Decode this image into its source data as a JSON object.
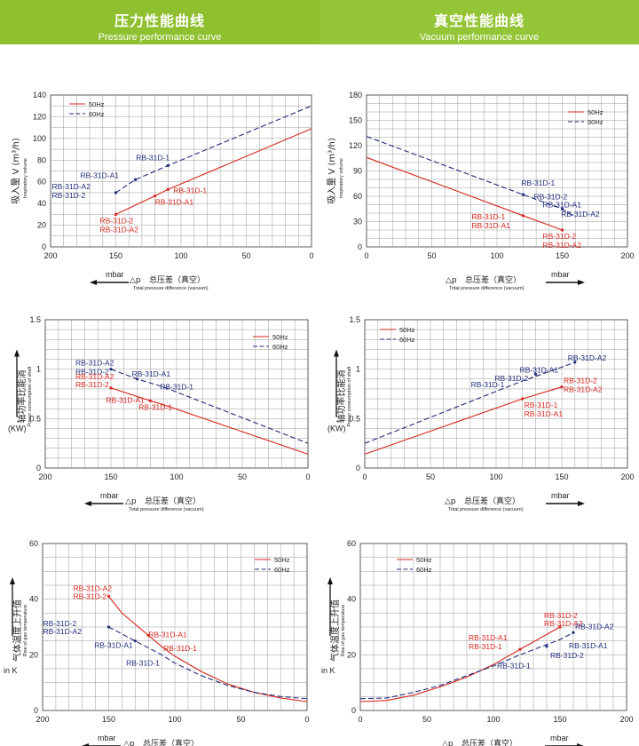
{
  "header": {
    "left_zh": "压力性能曲线",
    "left_en": "Pressure performance curve",
    "right_zh": "真空性能曲线",
    "right_en": "Vacuum performance curve"
  },
  "axis_text": {
    "dp_symbol": "△p",
    "x_zh": "总压差（真空）",
    "x_en": "Total pressure difference (vacuum)",
    "mbar": "mbar",
    "flow_zh": "吸入量",
    "flow_unit": "V (m³/h)",
    "flow_en": "Inspiratory volume",
    "power_zh": "轴功率比能消",
    "power_en": "Power consumption of shaft",
    "power_unit": "(KW)",
    "temp_zh": "气体温度上升值",
    "temp_en": "Rise of gas temperature",
    "temp_unit": "in K"
  },
  "colors": {
    "hz50": "#d7261d",
    "hz60": "#1f2a7a",
    "grid": "#9a9a9a",
    "banner": "#9dcb3c"
  },
  "chart_data": [
    {
      "id": "pressure-flow",
      "type": "line",
      "xlim": [
        200,
        0
      ],
      "ylim": [
        0,
        140
      ],
      "xticks": [
        "200",
        "150",
        "100",
        "50",
        "0"
      ],
      "yticks": [
        "0",
        "20",
        "40",
        "60",
        "80",
        "100",
        "120",
        "140"
      ],
      "legend_position": "top-left",
      "series": [
        {
          "name": "50Hz",
          "style": "solid",
          "x": [
            150,
            120,
            110,
            0
          ],
          "y": [
            30,
            47,
            53,
            109
          ]
        },
        {
          "name": "60Hz",
          "style": "dashed",
          "x": [
            150,
            135,
            110,
            0
          ],
          "y": [
            50,
            62,
            75,
            130
          ]
        }
      ],
      "annotations": [
        {
          "text": "RB-31D-1",
          "series": "60Hz"
        },
        {
          "text": "RB-31D-A1",
          "series": "60Hz"
        },
        {
          "text": "RB-31D-A2",
          "series": "60Hz"
        },
        {
          "text": "RB-31D-2",
          "series": "60Hz"
        },
        {
          "text": "RB-31D-1",
          "series": "50Hz"
        },
        {
          "text": "RB-31D-A1",
          "series": "50Hz"
        },
        {
          "text": "RB-31D-2",
          "series": "50Hz"
        },
        {
          "text": "RB-31D-A2",
          "series": "50Hz"
        }
      ]
    },
    {
      "id": "vacuum-flow",
      "type": "line",
      "xlim": [
        0,
        200
      ],
      "ylim": [
        0,
        180
      ],
      "xticks": [
        "0",
        "50",
        "100",
        "150",
        "200"
      ],
      "yticks": [
        "0",
        "30",
        "60",
        "90",
        "120",
        "150",
        "180"
      ],
      "legend_position": "top-right",
      "series": [
        {
          "name": "50Hz",
          "style": "solid",
          "x": [
            0,
            120,
            150
          ],
          "y": [
            106,
            37,
            20
          ]
        },
        {
          "name": "60Hz",
          "style": "dashed",
          "x": [
            0,
            120,
            150,
            160
          ],
          "y": [
            131,
            62,
            45,
            35
          ]
        }
      ],
      "annotations": [
        {
          "text": "RB-31D-1",
          "series": "60Hz"
        },
        {
          "text": "RB-31D-2",
          "series": "60Hz"
        },
        {
          "text": "RB-31D-A1",
          "series": "60Hz"
        },
        {
          "text": "RB-31D-A2",
          "series": "60Hz"
        },
        {
          "text": "RB-31D-1",
          "series": "50Hz"
        },
        {
          "text": "RB-31D-A1",
          "series": "50Hz"
        },
        {
          "text": "RB-31D-2",
          "series": "50Hz"
        },
        {
          "text": "RB-31D-A2",
          "series": "50Hz"
        }
      ]
    },
    {
      "id": "pressure-power",
      "type": "line",
      "xlim": [
        200,
        0
      ],
      "ylim": [
        0,
        1.5
      ],
      "xticks": [
        "200",
        "150",
        "100",
        "50",
        "0"
      ],
      "yticks": [
        "0",
        "0.5",
        "1",
        "1.5"
      ],
      "legend_position": "top-right",
      "series": [
        {
          "name": "50Hz",
          "style": "solid",
          "x": [
            150,
            120,
            110,
            0
          ],
          "y": [
            0.81,
            0.68,
            0.64,
            0.14
          ]
        },
        {
          "name": "60Hz",
          "style": "dashed",
          "x": [
            150,
            130,
            110,
            0
          ],
          "y": [
            1.0,
            0.9,
            0.82,
            0.25
          ]
        }
      ],
      "annotations": [
        {
          "text": "RB-31D-A2",
          "series": "60Hz"
        },
        {
          "text": "RB-31D-2",
          "series": "60Hz"
        },
        {
          "text": "RB-31D-A1",
          "series": "60Hz"
        },
        {
          "text": "RB-31D-1",
          "series": "60Hz"
        },
        {
          "text": "RB-31D-A2",
          "series": "50Hz"
        },
        {
          "text": "RB-31D-2",
          "series": "50Hz"
        },
        {
          "text": "RB-31D-A1",
          "series": "50Hz"
        },
        {
          "text": "RB-31D-1",
          "series": "50Hz"
        }
      ]
    },
    {
      "id": "vacuum-power",
      "type": "line",
      "xlim": [
        0,
        200
      ],
      "ylim": [
        0,
        1.5
      ],
      "xticks": [
        "0",
        "50",
        "100",
        "150",
        "200"
      ],
      "yticks": [
        "0",
        "0.5",
        "1",
        "1.5"
      ],
      "legend_position": "top-right",
      "series": [
        {
          "name": "50Hz",
          "style": "solid",
          "x": [
            0,
            120,
            150
          ],
          "y": [
            0.14,
            0.7,
            0.82
          ]
        },
        {
          "name": "60Hz",
          "style": "dashed",
          "x": [
            0,
            120,
            150,
            160
          ],
          "y": [
            0.25,
            0.88,
            1.02,
            1.07
          ]
        }
      ],
      "annotations": [
        {
          "text": "RB-31D-A2",
          "series": "60Hz"
        },
        {
          "text": "RB-31D-A1",
          "series": "60Hz"
        },
        {
          "text": "RB-31D-2",
          "series": "60Hz"
        },
        {
          "text": "RB-31D-1",
          "series": "60Hz"
        },
        {
          "text": "RB-31D-2",
          "series": "50Hz"
        },
        {
          "text": "RB-31D-A2",
          "series": "50Hz"
        },
        {
          "text": "RB-31D-1",
          "series": "50Hz"
        },
        {
          "text": "RB-31D-A1",
          "series": "50Hz"
        }
      ]
    },
    {
      "id": "pressure-temp",
      "type": "line",
      "xlim": [
        200,
        0
      ],
      "ylim": [
        0,
        60
      ],
      "xticks": [
        "200",
        "150",
        "100",
        "50",
        "0"
      ],
      "yticks": [
        "0",
        "20",
        "40",
        "60"
      ],
      "legend_position": "top-right",
      "series": [
        {
          "name": "50Hz",
          "style": "solid",
          "x": [
            150,
            140,
            120,
            110,
            100,
            80,
            60,
            40,
            20,
            0
          ],
          "y": [
            41,
            35,
            27,
            23,
            19.5,
            14,
            9.5,
            6.5,
            4.5,
            3.2
          ]
        },
        {
          "name": "60Hz",
          "style": "dashed",
          "x": [
            150,
            130,
            110,
            100,
            80,
            60,
            40,
            20,
            0
          ],
          "y": [
            30,
            25,
            20,
            17,
            12.5,
            9,
            6.5,
            5,
            4.2
          ]
        }
      ],
      "annotations": [
        {
          "text": "RB-31D-A2",
          "series": "50Hz"
        },
        {
          "text": "RB-31D-2",
          "series": "50Hz"
        },
        {
          "text": "RB-31D-A1",
          "series": "50Hz"
        },
        {
          "text": "RB-31D-1",
          "series": "50Hz"
        },
        {
          "text": "RB-31D-2",
          "series": "60Hz"
        },
        {
          "text": "RB-31D-A2",
          "series": "60Hz"
        },
        {
          "text": "RB-31D-A1",
          "series": "60Hz"
        },
        {
          "text": "RB-31D-1",
          "series": "60Hz"
        }
      ]
    },
    {
      "id": "vacuum-temp",
      "type": "line",
      "xlim": [
        0,
        200
      ],
      "ylim": [
        0,
        60
      ],
      "xticks": [
        "0",
        "50",
        "100",
        "150",
        "200"
      ],
      "yticks": [
        "0",
        "20",
        "40",
        "60"
      ],
      "legend_position": "top-right",
      "series": [
        {
          "name": "50Hz",
          "style": "solid",
          "x": [
            0,
            20,
            40,
            60,
            80,
            100,
            120,
            150
          ],
          "y": [
            3.2,
            3.6,
            5.5,
            8.5,
            12,
            16.5,
            22,
            30
          ]
        },
        {
          "name": "60Hz",
          "style": "dashed",
          "x": [
            0,
            20,
            40,
            60,
            80,
            100,
            120,
            150,
            160
          ],
          "y": [
            4.2,
            4.5,
            6.5,
            9,
            12.5,
            16,
            20,
            25.5,
            28
          ]
        }
      ],
      "annotations": [
        {
          "text": "RB-31D-A1",
          "series": "50Hz"
        },
        {
          "text": "RB-31D-1",
          "series": "50Hz"
        },
        {
          "text": "RB-31D-2",
          "series": "50Hz"
        },
        {
          "text": "RB-31D-A2",
          "series": "50Hz"
        },
        {
          "text": "RB-31D-A2",
          "series": "60Hz"
        },
        {
          "text": "RB-31D-A1",
          "series": "60Hz"
        },
        {
          "text": "RB-31D-2",
          "series": "60Hz"
        },
        {
          "text": "RB-31D-1",
          "series": "60Hz"
        }
      ]
    }
  ]
}
